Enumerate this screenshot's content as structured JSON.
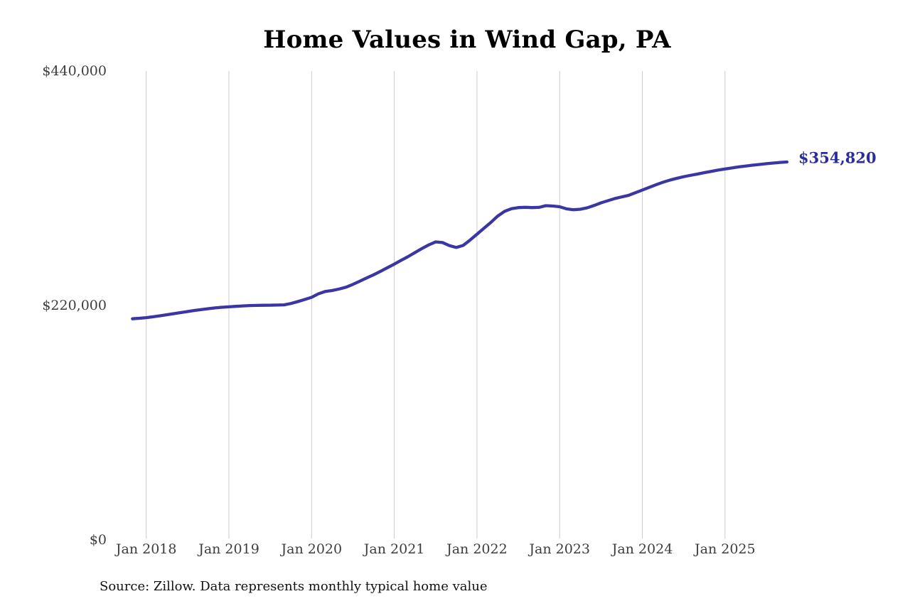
{
  "title": "Home Values in Wind Gap, PA",
  "source_note": "Source: Zillow. Data represents monthly typical home value",
  "colors": {
    "line": "#3a36a3",
    "end_label": "#2d2d99",
    "gridline": "#cbcbcb",
    "tick_text": "#3d3d3d",
    "background": "#ffffff"
  },
  "chart_data": {
    "type": "line",
    "title": "Home Values in Wind Gap, PA",
    "xlabel": "",
    "ylabel": "",
    "ylim": [
      0,
      440000
    ],
    "grid": "vertical-only",
    "legend_position": "none",
    "series_name": "Typical home value",
    "end_label": "$354,820",
    "end_value": 354820,
    "y_ticks": [
      {
        "label": "$440,000",
        "value": 440000
      },
      {
        "label": "$220,000",
        "value": 220000
      },
      {
        "label": "$0",
        "value": 0
      }
    ],
    "x_ticks": [
      {
        "label": "Jan 2018",
        "month": "2018-01"
      },
      {
        "label": "Jan 2019",
        "month": "2019-01"
      },
      {
        "label": "Jan 2020",
        "month": "2020-01"
      },
      {
        "label": "Jan 2021",
        "month": "2021-01"
      },
      {
        "label": "Jan 2022",
        "month": "2022-01"
      },
      {
        "label": "Jan 2023",
        "month": "2023-01"
      },
      {
        "label": "Jan 2024",
        "month": "2024-01"
      },
      {
        "label": "Jan 2025",
        "month": "2025-01"
      }
    ],
    "x": [
      "2017-11",
      "2017-12",
      "2018-01",
      "2018-02",
      "2018-03",
      "2018-04",
      "2018-05",
      "2018-06",
      "2018-07",
      "2018-08",
      "2018-09",
      "2018-10",
      "2018-11",
      "2018-12",
      "2019-01",
      "2019-02",
      "2019-03",
      "2019-04",
      "2019-05",
      "2019-06",
      "2019-07",
      "2019-08",
      "2019-09",
      "2019-10",
      "2019-11",
      "2019-12",
      "2020-01",
      "2020-02",
      "2020-03",
      "2020-04",
      "2020-05",
      "2020-06",
      "2020-07",
      "2020-08",
      "2020-09",
      "2020-10",
      "2020-11",
      "2020-12",
      "2021-01",
      "2021-02",
      "2021-03",
      "2021-04",
      "2021-05",
      "2021-06",
      "2021-07",
      "2021-08",
      "2021-09",
      "2021-10",
      "2021-11",
      "2021-12",
      "2022-01",
      "2022-02",
      "2022-03",
      "2022-04",
      "2022-05",
      "2022-06",
      "2022-07",
      "2022-08",
      "2022-09",
      "2022-10",
      "2022-11",
      "2022-12",
      "2023-01",
      "2023-02",
      "2023-03",
      "2023-04",
      "2023-05",
      "2023-06",
      "2023-07",
      "2023-08",
      "2023-09",
      "2023-10",
      "2023-11",
      "2023-12",
      "2024-01",
      "2024-02",
      "2024-03",
      "2024-04",
      "2024-05",
      "2024-06",
      "2024-07",
      "2024-08",
      "2024-09",
      "2024-10",
      "2024-11",
      "2024-12",
      "2025-01",
      "2025-02",
      "2025-03",
      "2025-04",
      "2025-05",
      "2025-06",
      "2025-07",
      "2025-08",
      "2025-09",
      "2025-10"
    ],
    "values": [
      207600,
      208100,
      208700,
      209500,
      210400,
      211400,
      212400,
      213400,
      214400,
      215400,
      216300,
      217100,
      217800,
      218400,
      218800,
      219300,
      219700,
      220000,
      220200,
      220300,
      220400,
      220500,
      220700,
      222000,
      223800,
      225700,
      227800,
      231100,
      233300,
      234200,
      235600,
      237300,
      240000,
      242900,
      246000,
      248900,
      252200,
      255600,
      258900,
      262500,
      266000,
      269800,
      273500,
      277000,
      279800,
      279200,
      276300,
      274600,
      276500,
      281500,
      287000,
      292500,
      298000,
      304000,
      308500,
      311000,
      312000,
      312300,
      312000,
      312200,
      313800,
      313500,
      312800,
      310800,
      310000,
      310500,
      311800,
      314000,
      316500,
      318500,
      320500,
      322000,
      323500,
      326000,
      328500,
      331000,
      333500,
      335800,
      337800,
      339500,
      341000,
      342300,
      343500,
      344800,
      346000,
      347200,
      348200,
      349200,
      350200,
      351000,
      351800,
      352500,
      353200,
      353800,
      354400,
      354820
    ]
  }
}
